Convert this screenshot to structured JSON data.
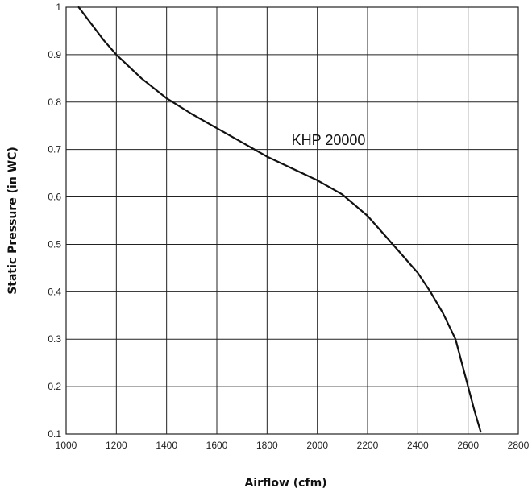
{
  "chart_data": {
    "type": "line",
    "title": "",
    "xlabel": "Airflow (cfm)",
    "ylabel": "Static Pressure (in WC)",
    "xlim": [
      1000,
      2800
    ],
    "ylim": [
      0.1,
      1
    ],
    "x_ticks": [
      1000,
      1200,
      1400,
      1600,
      1800,
      2000,
      2200,
      2400,
      2600,
      2800
    ],
    "x_tick_labels": [
      "1000",
      "1200",
      "1400",
      "1600",
      "1800",
      "2000",
      "2200",
      "2400",
      "2600",
      "2800"
    ],
    "y_ticks": [
      0.1,
      0.2,
      0.3,
      0.4,
      0.5,
      0.6,
      0.7,
      0.8,
      0.9,
      1
    ],
    "y_tick_labels": [
      "0.1",
      "0.2",
      "0.3",
      "0.4",
      "0.5",
      "0.6",
      "0.7",
      "0.8",
      "0.9",
      "1"
    ],
    "grid": true,
    "series": [
      {
        "name": "KHP 20000",
        "x": [
          1050,
          1100,
          1150,
          1200,
          1300,
          1400,
          1500,
          1600,
          1700,
          1800,
          1900,
          2000,
          2100,
          2200,
          2300,
          2400,
          2450,
          2500,
          2550,
          2575,
          2600,
          2625,
          2650
        ],
        "y": [
          1.0,
          0.965,
          0.93,
          0.9,
          0.85,
          0.808,
          0.775,
          0.745,
          0.715,
          0.685,
          0.66,
          0.635,
          0.605,
          0.56,
          0.5,
          0.44,
          0.4,
          0.355,
          0.3,
          0.25,
          0.2,
          0.15,
          0.105
        ]
      }
    ],
    "annotations": [
      {
        "text": "KHP 20000",
        "x": 2000,
        "y": 0.72
      }
    ]
  },
  "colors": {
    "line": "#111111",
    "grid": "#222222",
    "background": "#ffffff"
  }
}
